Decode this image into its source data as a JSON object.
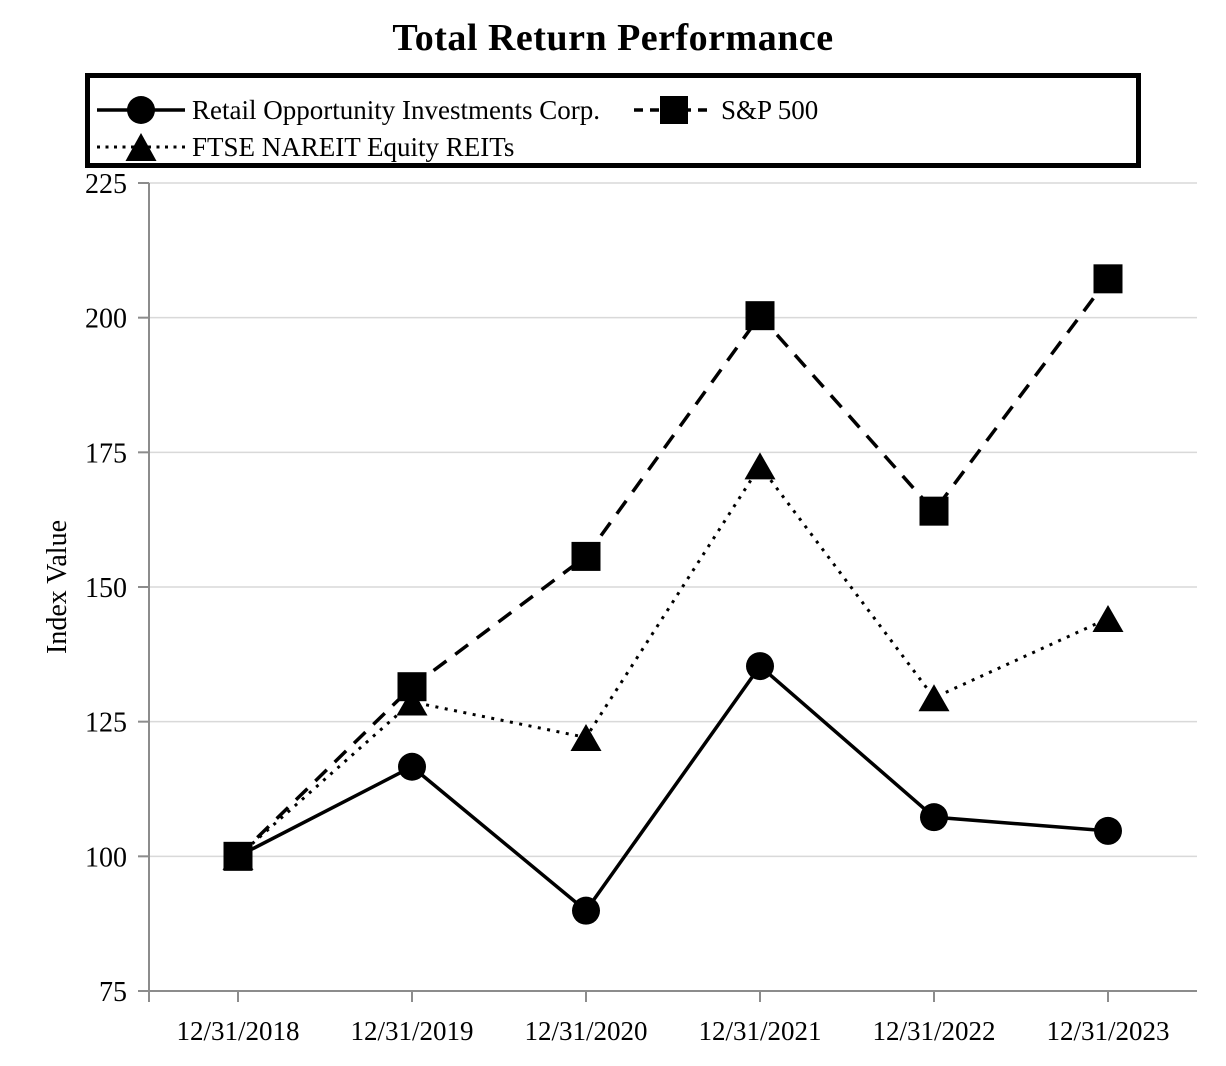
{
  "chart_data": {
    "type": "line",
    "title": "Total Return Performance",
    "ylabel": "Index Value",
    "xlabel": "",
    "categories": [
      "12/31/2018",
      "12/31/2019",
      "12/31/2020",
      "12/31/2021",
      "12/31/2022",
      "12/31/2023"
    ],
    "ylim": [
      75,
      225
    ],
    "yticks": [
      75,
      100,
      125,
      150,
      175,
      200,
      225
    ],
    "grid": true,
    "legend_position": "top-left-box",
    "series": [
      {
        "id": "roic",
        "name": "Retail Opportunity Investments Corp.",
        "marker": "circle",
        "line_style": "solid",
        "values": [
          100.0,
          116.63,
          89.91,
          135.32,
          107.27,
          104.72
        ]
      },
      {
        "id": "sp500",
        "name": "S&P 500",
        "marker": "square",
        "line_style": "dashed",
        "values": [
          100.0,
          131.49,
          155.68,
          200.37,
          164.08,
          207.21
        ]
      },
      {
        "id": "ftse",
        "name": "FTSE NAREIT Equity REITs",
        "marker": "triangle",
        "line_style": "dotted",
        "values": [
          100.0,
          128.66,
          122.07,
          172.48,
          129.45,
          144.16
        ]
      }
    ],
    "colors": {
      "series": "#000000",
      "gridline": "#d9d9d9",
      "axis": "#8c8c8c",
      "text": "#000000"
    }
  },
  "legend": {
    "entries": [
      {
        "label": "Retail Opportunity Investments Corp.",
        "marker": "circle",
        "line": "solid"
      },
      {
        "label": "S&P 500",
        "marker": "square",
        "line": "dashed"
      },
      {
        "label": "FTSE NAREIT Equity REITs",
        "marker": "triangle",
        "line": "dotted"
      }
    ]
  }
}
